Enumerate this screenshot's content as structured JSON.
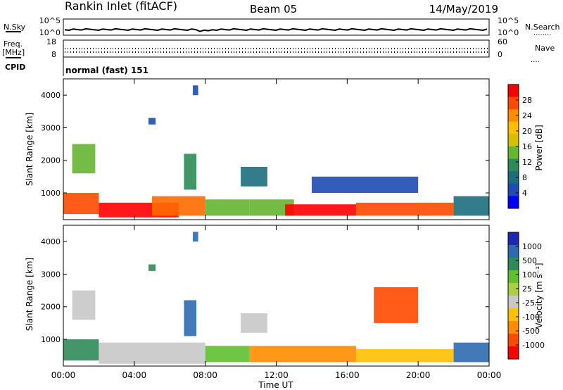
{
  "header": {
    "station": "Rankin Inlet (fitACF)",
    "beam": "Beam 05",
    "date": "14/May/2019"
  },
  "top_panel": {
    "noise": {
      "left_label": "N.Sky",
      "left_ticks": [
        "10^5",
        "10^0"
      ],
      "right_ticks": [
        "10^5",
        "10^0"
      ],
      "right_label": "N.Search",
      "right_symbol": "........"
    },
    "freq": {
      "left_label_1": "Freq.",
      "left_label_2": "[MHz]",
      "left_ticks": [
        "18",
        "8"
      ],
      "right_ticks": [
        "60",
        "0"
      ],
      "right_label": "Nave",
      "right_symbol": "...."
    },
    "cpid": {
      "label": "CPID",
      "mode": "normal (fast) 151"
    }
  },
  "x_axis": {
    "ticks": [
      "00:00",
      "04:00",
      "08:00",
      "12:00",
      "16:00",
      "20:00",
      "00:00"
    ],
    "label": "Time UT"
  },
  "chart_data": [
    {
      "type": "heatmap",
      "panel": "power",
      "ylabel": "Slant Range [km]",
      "y_ticks": [
        1000,
        2000,
        3000,
        4000
      ],
      "ylim": [
        180,
        4500
      ],
      "xlim_hours": [
        0,
        24
      ],
      "colorbar": {
        "label": "Power [dB]",
        "ticks": [
          "28",
          "24",
          "20",
          "16",
          "12",
          "8",
          "4"
        ],
        "colors": [
          "#ff0000",
          "#ff4a00",
          "#ff8c00",
          "#ffbf00",
          "#d4c000",
          "#66b533",
          "#2e8b57",
          "#1c6e7e",
          "#1e4bb4",
          "#0000ff"
        ]
      },
      "regions": [
        {
          "t": [
            0.0,
            2.0
          ],
          "r": [
            350,
            1000
          ],
          "color": "#ff4a00"
        },
        {
          "t": [
            2.0,
            6.5
          ],
          "r": [
            250,
            700
          ],
          "color": "#ff0000"
        },
        {
          "t": [
            5.0,
            8.0
          ],
          "r": [
            300,
            900
          ],
          "color": "#ff6a00"
        },
        {
          "t": [
            8.0,
            10.5
          ],
          "r": [
            300,
            800
          ],
          "color": "#66b533"
        },
        {
          "t": [
            10.5,
            13.0
          ],
          "r": [
            300,
            800
          ],
          "color": "#66b533"
        },
        {
          "t": [
            12.5,
            16.5
          ],
          "r": [
            300,
            650
          ],
          "color": "#ff0000"
        },
        {
          "t": [
            16.5,
            22.0
          ],
          "r": [
            300,
            700
          ],
          "color": "#ff4a00"
        },
        {
          "t": [
            22.0,
            24.0
          ],
          "r": [
            300,
            900
          ],
          "color": "#1c6e7e"
        },
        {
          "t": [
            0.5,
            1.8
          ],
          "r": [
            1600,
            2500
          ],
          "color": "#66b533"
        },
        {
          "t": [
            6.8,
            7.5
          ],
          "r": [
            1100,
            2200
          ],
          "color": "#2e8b57"
        },
        {
          "t": [
            10.0,
            11.5
          ],
          "r": [
            1200,
            1800
          ],
          "color": "#1c6e7e"
        },
        {
          "t": [
            14.0,
            20.0
          ],
          "r": [
            1000,
            1500
          ],
          "color": "#1e4bb4"
        },
        {
          "t": [
            4.8,
            5.2
          ],
          "r": [
            3100,
            3300
          ],
          "color": "#1e4bb4"
        },
        {
          "t": [
            7.3,
            7.6
          ],
          "r": [
            4000,
            4300
          ],
          "color": "#1e4bb4"
        }
      ]
    },
    {
      "type": "heatmap",
      "panel": "velocity",
      "ylabel": "Slant Range [km]",
      "y_ticks": [
        1000,
        2000,
        3000,
        4000
      ],
      "ylim": [
        180,
        4500
      ],
      "xlim_hours": [
        0,
        24
      ],
      "colorbar": {
        "label": "Velocity [m s⁻¹]",
        "ticks": [
          "1000",
          "500",
          "100",
          "25",
          "-25",
          "-100",
          "-500",
          "-1000"
        ],
        "colors": [
          "#1e28b4",
          "#2d6ab0",
          "#2e8b57",
          "#5fc030",
          "#aad040",
          "#c8c8c8",
          "#ffc000",
          "#ff8c00",
          "#ff4a00",
          "#ff0000"
        ]
      },
      "regions": [
        {
          "t": [
            0.0,
            2.0
          ],
          "r": [
            350,
            1000
          ],
          "color": "#2e8b57"
        },
        {
          "t": [
            2.0,
            8.0
          ],
          "r": [
            250,
            900
          ],
          "color": "#c8c8c8"
        },
        {
          "t": [
            8.0,
            10.5
          ],
          "r": [
            300,
            800
          ],
          "color": "#5fc030"
        },
        {
          "t": [
            10.5,
            16.5
          ],
          "r": [
            300,
            800
          ],
          "color": "#ff8c00"
        },
        {
          "t": [
            16.5,
            22.0
          ],
          "r": [
            300,
            700
          ],
          "color": "#ffc000"
        },
        {
          "t": [
            22.0,
            24.0
          ],
          "r": [
            300,
            900
          ],
          "color": "#2d6ab0"
        },
        {
          "t": [
            0.5,
            1.8
          ],
          "r": [
            1600,
            2500
          ],
          "color": "#c8c8c8"
        },
        {
          "t": [
            6.8,
            7.5
          ],
          "r": [
            1100,
            2200
          ],
          "color": "#2d6ab0"
        },
        {
          "t": [
            10.0,
            11.5
          ],
          "r": [
            1200,
            1800
          ],
          "color": "#c8c8c8"
        },
        {
          "t": [
            17.5,
            20.0
          ],
          "r": [
            1500,
            2600
          ],
          "color": "#ff4a00"
        },
        {
          "t": [
            4.8,
            5.2
          ],
          "r": [
            3100,
            3300
          ],
          "color": "#2e8b57"
        },
        {
          "t": [
            7.3,
            7.6
          ],
          "r": [
            4000,
            4300
          ],
          "color": "#2d6ab0"
        }
      ]
    }
  ]
}
